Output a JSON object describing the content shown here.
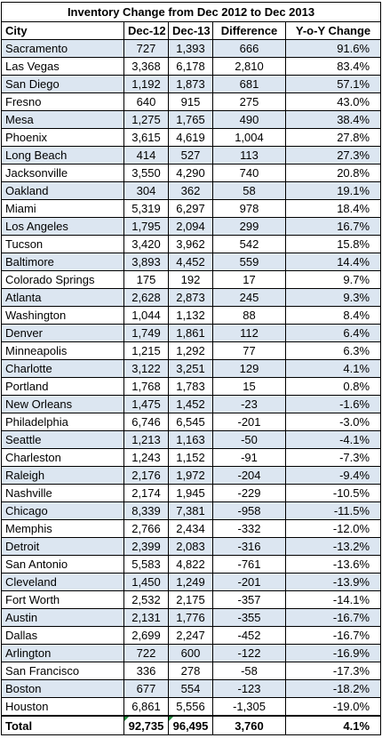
{
  "title": "Inventory Change from Dec 2012 to Dec 2013",
  "headers": [
    "City",
    "Dec-12",
    "Dec-13",
    "Difference",
    "Y-o-Y Change"
  ],
  "rows": [
    [
      "Sacramento",
      "727",
      "1,393",
      "666",
      "91.6%"
    ],
    [
      "Las Vegas",
      "3,368",
      "6,178",
      "2,810",
      "83.4%"
    ],
    [
      "San Diego",
      "1,192",
      "1,873",
      "681",
      "57.1%"
    ],
    [
      "Fresno",
      "640",
      "915",
      "275",
      "43.0%"
    ],
    [
      "Mesa",
      "1,275",
      "1,765",
      "490",
      "38.4%"
    ],
    [
      "Phoenix",
      "3,615",
      "4,619",
      "1,004",
      "27.8%"
    ],
    [
      "Long Beach",
      "414",
      "527",
      "113",
      "27.3%"
    ],
    [
      "Jacksonville",
      "3,550",
      "4,290",
      "740",
      "20.8%"
    ],
    [
      "Oakland",
      "304",
      "362",
      "58",
      "19.1%"
    ],
    [
      "Miami",
      "5,319",
      "6,297",
      "978",
      "18.4%"
    ],
    [
      "Los Angeles",
      "1,795",
      "2,094",
      "299",
      "16.7%"
    ],
    [
      "Tucson",
      "3,420",
      "3,962",
      "542",
      "15.8%"
    ],
    [
      "Baltimore",
      "3,893",
      "4,452",
      "559",
      "14.4%"
    ],
    [
      "Colorado Springs",
      "175",
      "192",
      "17",
      "9.7%"
    ],
    [
      "Atlanta",
      "2,628",
      "2,873",
      "245",
      "9.3%"
    ],
    [
      "Washington",
      "1,044",
      "1,132",
      "88",
      "8.4%"
    ],
    [
      "Denver",
      "1,749",
      "1,861",
      "112",
      "6.4%"
    ],
    [
      "Minneapolis",
      "1,215",
      "1,292",
      "77",
      "6.3%"
    ],
    [
      "Charlotte",
      "3,122",
      "3,251",
      "129",
      "4.1%"
    ],
    [
      "Portland",
      "1,768",
      "1,783",
      "15",
      "0.8%"
    ],
    [
      "New Orleans",
      "1,475",
      "1,452",
      "-23",
      "-1.6%"
    ],
    [
      "Philadelphia",
      "6,746",
      "6,545",
      "-201",
      "-3.0%"
    ],
    [
      "Seattle",
      "1,213",
      "1,163",
      "-50",
      "-4.1%"
    ],
    [
      "Charleston",
      "1,243",
      "1,152",
      "-91",
      "-7.3%"
    ],
    [
      "Raleigh",
      "2,176",
      "1,972",
      "-204",
      "-9.4%"
    ],
    [
      "Nashville",
      "2,174",
      "1,945",
      "-229",
      "-10.5%"
    ],
    [
      "Chicago",
      "8,339",
      "7,381",
      "-958",
      "-11.5%"
    ],
    [
      "Memphis",
      "2,766",
      "2,434",
      "-332",
      "-12.0%"
    ],
    [
      "Detroit",
      "2,399",
      "2,083",
      "-316",
      "-13.2%"
    ],
    [
      "San Antonio",
      "5,583",
      "4,822",
      "-761",
      "-13.6%"
    ],
    [
      "Cleveland",
      "1,450",
      "1,249",
      "-201",
      "-13.9%"
    ],
    [
      "Fort Worth",
      "2,532",
      "2,175",
      "-357",
      "-14.1%"
    ],
    [
      "Austin",
      "2,131",
      "1,776",
      "-355",
      "-16.7%"
    ],
    [
      "Dallas",
      "2,699",
      "2,247",
      "-452",
      "-16.7%"
    ],
    [
      "Arlington",
      "722",
      "600",
      "-122",
      "-16.9%"
    ],
    [
      "San Francisco",
      "336",
      "278",
      "-58",
      "-17.3%"
    ],
    [
      "Boston",
      "677",
      "554",
      "-123",
      "-18.2%"
    ],
    [
      "Houston",
      "6,861",
      "5,556",
      "-1,305",
      "-19.0%"
    ]
  ],
  "total": [
    "Total",
    "92,735",
    "96,495",
    "3,760",
    "4.1%"
  ],
  "colors": {
    "band": "#dce6f1",
    "error_flag": "#1e8b3a"
  }
}
